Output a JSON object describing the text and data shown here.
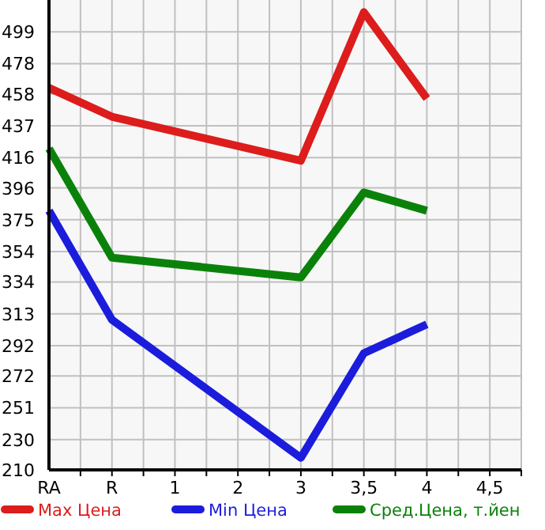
{
  "chart_data": {
    "type": "line",
    "categories": [
      "RA",
      "R",
      "1",
      "2",
      "3",
      "3,5",
      "4",
      "4,5"
    ],
    "series": [
      {
        "name": "Max Цена",
        "color": "#dd1c1c",
        "values": [
          462,
          443,
          null,
          null,
          414,
          512,
          455,
          null
        ]
      },
      {
        "name": "Min Цена",
        "color": "#1c1cdd",
        "values": [
          381,
          309,
          null,
          null,
          218,
          287,
          306,
          null
        ]
      },
      {
        "name": "Сред.Цена, т.йен",
        "color": "#0a820a",
        "values": [
          422,
          350,
          null,
          null,
          337,
          393,
          381,
          null
        ]
      }
    ],
    "ylim": [
      210,
      520
    ],
    "yticks": [
      210,
      230,
      251,
      272,
      292,
      313,
      334,
      354,
      375,
      396,
      416,
      437,
      458,
      478,
      499
    ],
    "grid": true,
    "legend": "bottom",
    "marker": "none",
    "line_style": "solid"
  }
}
